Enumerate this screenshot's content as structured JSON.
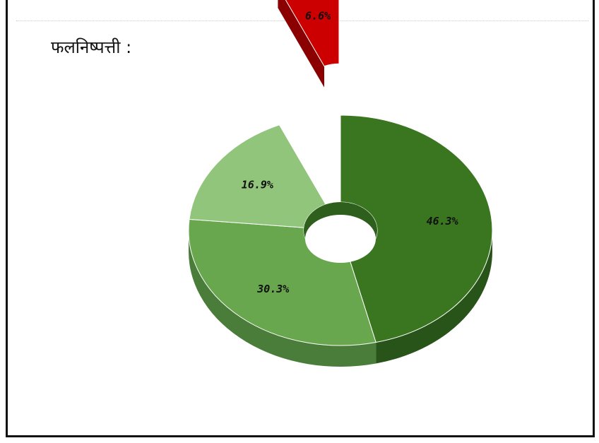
{
  "heading": "फलनिष्पत्ती :",
  "chart_data": {
    "type": "pie",
    "style": "3d-donut",
    "slices": [
      {
        "label": "46.3%",
        "value": 46.3,
        "color": "#3a761f",
        "side": "#28541a"
      },
      {
        "label": "30.3%",
        "value": 30.3,
        "color": "#68a74e",
        "side": "#4a7d3a"
      },
      {
        "label": "16.9%",
        "value": 16.9,
        "color": "#92c57c",
        "side": "#6f9e5c"
      },
      {
        "label": "6.6%",
        "value": 6.6,
        "color": "#cc0000",
        "side": "#8b0000",
        "exploded": true
      }
    ]
  }
}
